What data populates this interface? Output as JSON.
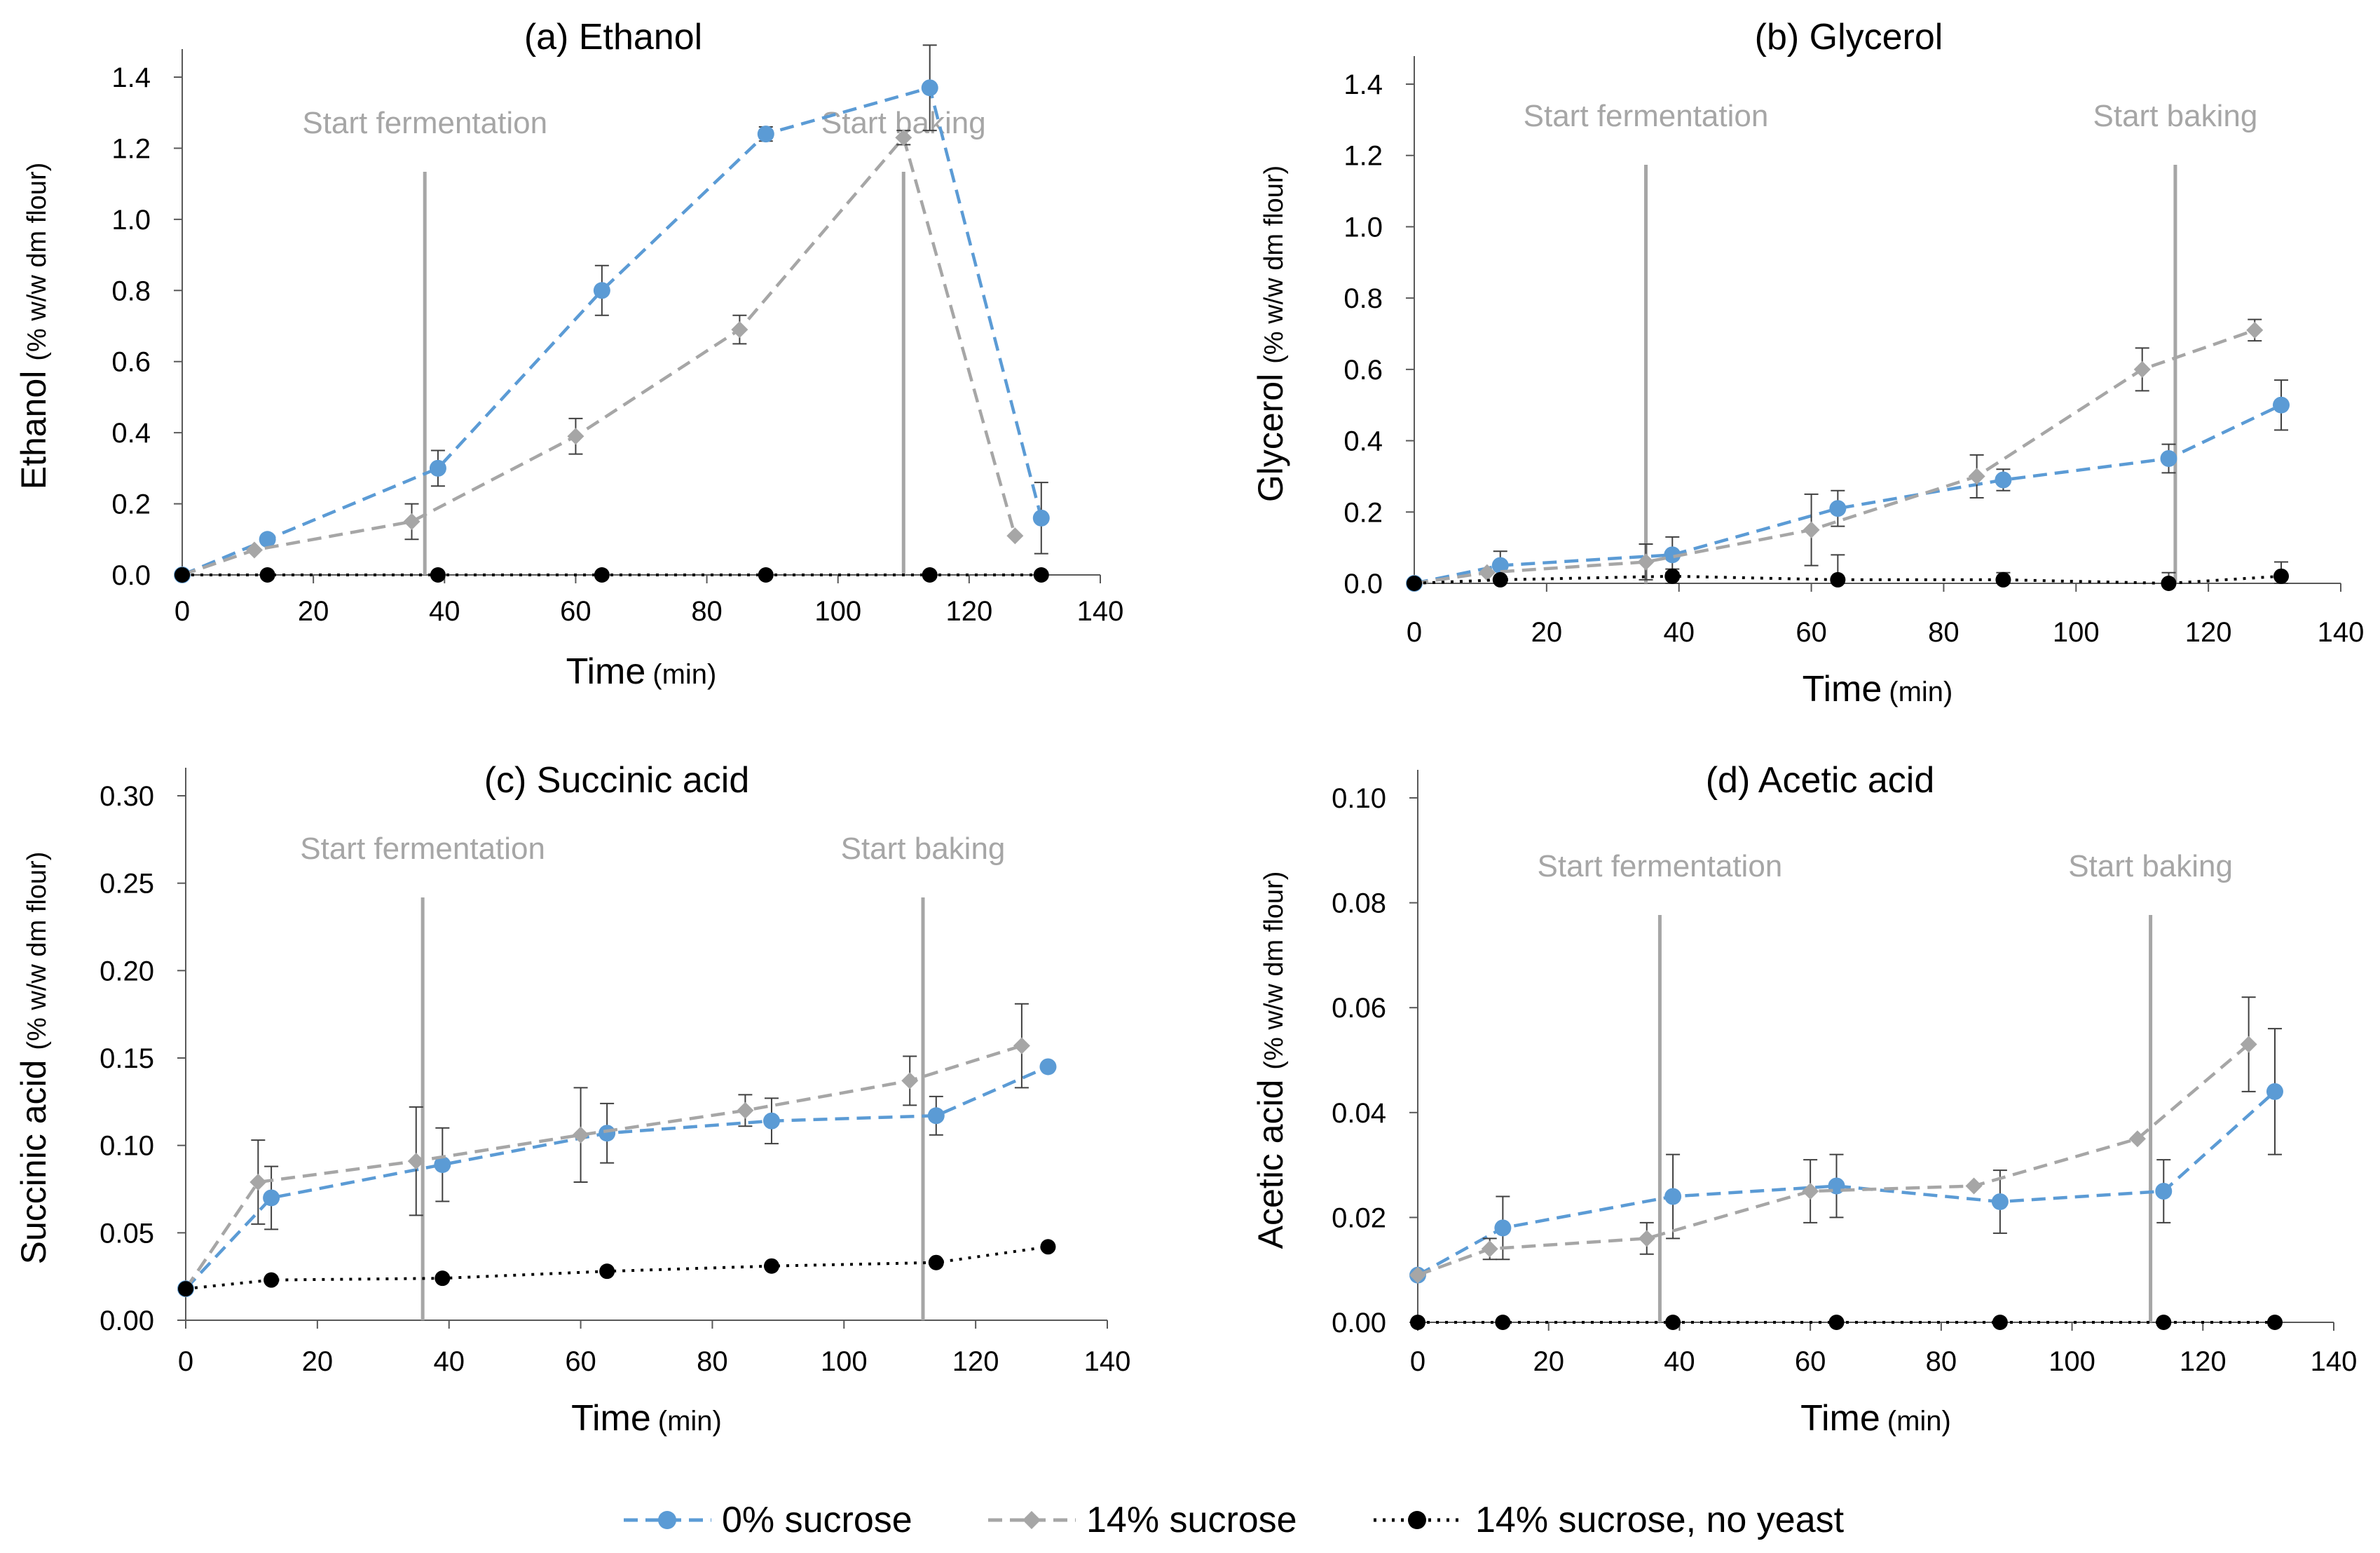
{
  "legend": {
    "entries": [
      {
        "name": "0% sucrose",
        "color": "#5B9BD5",
        "marker": "circle",
        "dash": "dashed"
      },
      {
        "name": "14% sucrose",
        "color": "#A6A6A6",
        "marker": "diamond",
        "dash": "dashed"
      },
      {
        "name": "14% sucrose, no yeast",
        "color": "#000000",
        "marker": "circle",
        "dash": "dotted"
      }
    ]
  },
  "chart_data": [
    {
      "type": "line",
      "title": "(a) Ethanol",
      "xlabel": "Time",
      "xlabel_unit": "(min)",
      "ylabel": "Ethanol",
      "ylabel_unit": "(% w/w dm flour)",
      "xlim": [
        0,
        140
      ],
      "xticks": [
        0,
        20,
        40,
        60,
        80,
        100,
        120,
        140
      ],
      "ylim": [
        0,
        1.4
      ],
      "yticks": [
        "0.0",
        "0.2",
        "0.4",
        "0.6",
        "0.8",
        "1.0",
        "1.2",
        "1.4"
      ],
      "annotations": [
        {
          "text": "Start fermentation",
          "x": 37
        },
        {
          "text": "Start baking",
          "x": 110
        }
      ],
      "series": [
        {
          "name": "0% sucrose",
          "x": [
            0,
            13,
            39,
            64,
            89,
            114,
            131
          ],
          "values": [
            0.0,
            0.1,
            0.3,
            0.8,
            1.24,
            1.37,
            0.16
          ],
          "err": [
            0,
            0,
            0.05,
            0.07,
            0.02,
            0.12,
            0.1
          ]
        },
        {
          "name": "14% sucrose",
          "x": [
            0,
            11,
            35,
            60,
            85,
            110,
            127
          ],
          "values": [
            0.0,
            0.07,
            0.15,
            0.39,
            0.69,
            1.23,
            0.11
          ],
          "err": [
            0,
            0,
            0.05,
            0.05,
            0.04,
            0.02,
            0
          ]
        },
        {
          "name": "14% sucrose, no yeast",
          "x": [
            0,
            13,
            39,
            64,
            89,
            114,
            131
          ],
          "values": [
            0,
            0,
            0,
            0,
            0,
            0,
            0
          ],
          "err": [
            0,
            0,
            0,
            0,
            0,
            0,
            0
          ]
        }
      ]
    },
    {
      "type": "line",
      "title": "(b) Glycerol",
      "xlabel": "Time",
      "xlabel_unit": "(min)",
      "ylabel": "Glycerol",
      "ylabel_unit": "(% w/w dm flour)",
      "xlim": [
        0,
        140
      ],
      "xticks": [
        0,
        20,
        40,
        60,
        80,
        100,
        120,
        140
      ],
      "ylim": [
        0,
        1.4
      ],
      "yticks": [
        "0.0",
        "0.2",
        "0.4",
        "0.6",
        "0.8",
        "1.0",
        "1.2",
        "1.4"
      ],
      "annotations": [
        {
          "text": "Start fermentation",
          "x": 35
        },
        {
          "text": "Start baking",
          "x": 115
        }
      ],
      "series": [
        {
          "name": "0% sucrose",
          "x": [
            0,
            13,
            39,
            64,
            89,
            114,
            131
          ],
          "values": [
            0.0,
            0.05,
            0.08,
            0.21,
            0.29,
            0.35,
            0.5
          ],
          "err": [
            0,
            0.04,
            0.05,
            0.05,
            0.03,
            0.04,
            0.07
          ]
        },
        {
          "name": "14% sucrose",
          "x": [
            0,
            11,
            35,
            60,
            85,
            110,
            127
          ],
          "values": [
            0.0,
            0.03,
            0.06,
            0.15,
            0.3,
            0.6,
            0.71
          ],
          "err": [
            0,
            0,
            0.05,
            0.1,
            0.06,
            0.06,
            0.03
          ]
        },
        {
          "name": "14% sucrose, no yeast",
          "x": [
            0,
            13,
            39,
            64,
            89,
            114,
            131
          ],
          "values": [
            0.0,
            0.01,
            0.02,
            0.01,
            0.01,
            0.0,
            0.02
          ],
          "err": [
            0,
            0,
            0.02,
            0.07,
            0.02,
            0.03,
            0.04
          ]
        }
      ]
    },
    {
      "type": "line",
      "title": "(c) Succinic acid",
      "xlabel": "Time",
      "xlabel_unit": "(min)",
      "ylabel": "Succinic acid",
      "ylabel_unit": "(% w/w dm flour)",
      "xlim": [
        0,
        140
      ],
      "xticks": [
        0,
        20,
        40,
        60,
        80,
        100,
        120,
        140
      ],
      "ylim": [
        0,
        0.3
      ],
      "yticks": [
        "0.00",
        "0.05",
        "0.10",
        "0.15",
        "0.20",
        "0.25",
        "0.30"
      ],
      "annotations": [
        {
          "text": "Start fermentation",
          "x": 36
        },
        {
          "text": "Start baking",
          "x": 112
        }
      ],
      "series": [
        {
          "name": "0% sucrose",
          "x": [
            0,
            13,
            39,
            64,
            89,
            114,
            131
          ],
          "values": [
            0.018,
            0.07,
            0.089,
            0.107,
            0.114,
            0.117,
            0.145
          ],
          "err": [
            0,
            0.018,
            0.021,
            0.017,
            0.013,
            0.011,
            0
          ]
        },
        {
          "name": "14% sucrose",
          "x": [
            0,
            11,
            35,
            60,
            85,
            110,
            127
          ],
          "values": [
            0.018,
            0.079,
            0.091,
            0.106,
            0.12,
            0.137,
            0.157
          ],
          "err": [
            0,
            0.024,
            0.031,
            0.027,
            0.009,
            0.014,
            0.024
          ]
        },
        {
          "name": "14% sucrose, no yeast",
          "x": [
            0,
            13,
            39,
            64,
            89,
            114,
            131
          ],
          "values": [
            0.018,
            0.023,
            0.024,
            0.028,
            0.031,
            0.033,
            0.042
          ],
          "err": [
            0,
            0,
            0,
            0,
            0,
            0,
            0
          ]
        }
      ]
    },
    {
      "type": "line",
      "title": "(d) Acetic acid",
      "xlabel": "Time",
      "xlabel_unit": "(min)",
      "ylabel": "Acetic acid",
      "ylabel_unit": "(% w/w dm flour)",
      "xlim": [
        0,
        140
      ],
      "xticks": [
        0,
        20,
        40,
        60,
        80,
        100,
        120,
        140
      ],
      "ylim": [
        0,
        0.1
      ],
      "yticks": [
        "0.00",
        "0.02",
        "0.04",
        "0.06",
        "0.08",
        "0.10"
      ],
      "annotations": [
        {
          "text": "Start fermentation",
          "x": 37
        },
        {
          "text": "Start baking",
          "x": 112
        }
      ],
      "series": [
        {
          "name": "0% sucrose",
          "x": [
            0,
            13,
            39,
            64,
            89,
            114,
            131
          ],
          "values": [
            0.009,
            0.018,
            0.024,
            0.026,
            0.023,
            0.025,
            0.044
          ],
          "err": [
            0,
            0.006,
            0.008,
            0.006,
            0.006,
            0.006,
            0.012
          ]
        },
        {
          "name": "14% sucrose",
          "x": [
            0,
            11,
            35,
            60,
            85,
            110,
            127
          ],
          "values": [
            0.009,
            0.014,
            0.016,
            0.025,
            0.026,
            0.035,
            0.053
          ],
          "err": [
            0,
            0.002,
            0.003,
            0.006,
            0,
            0,
            0.009
          ]
        },
        {
          "name": "14% sucrose, no yeast",
          "x": [
            0,
            13,
            39,
            64,
            89,
            114,
            131
          ],
          "values": [
            0,
            0,
            0,
            0,
            0,
            0,
            0
          ],
          "err": [
            0,
            0,
            0,
            0,
            0,
            0,
            0
          ]
        }
      ]
    }
  ]
}
